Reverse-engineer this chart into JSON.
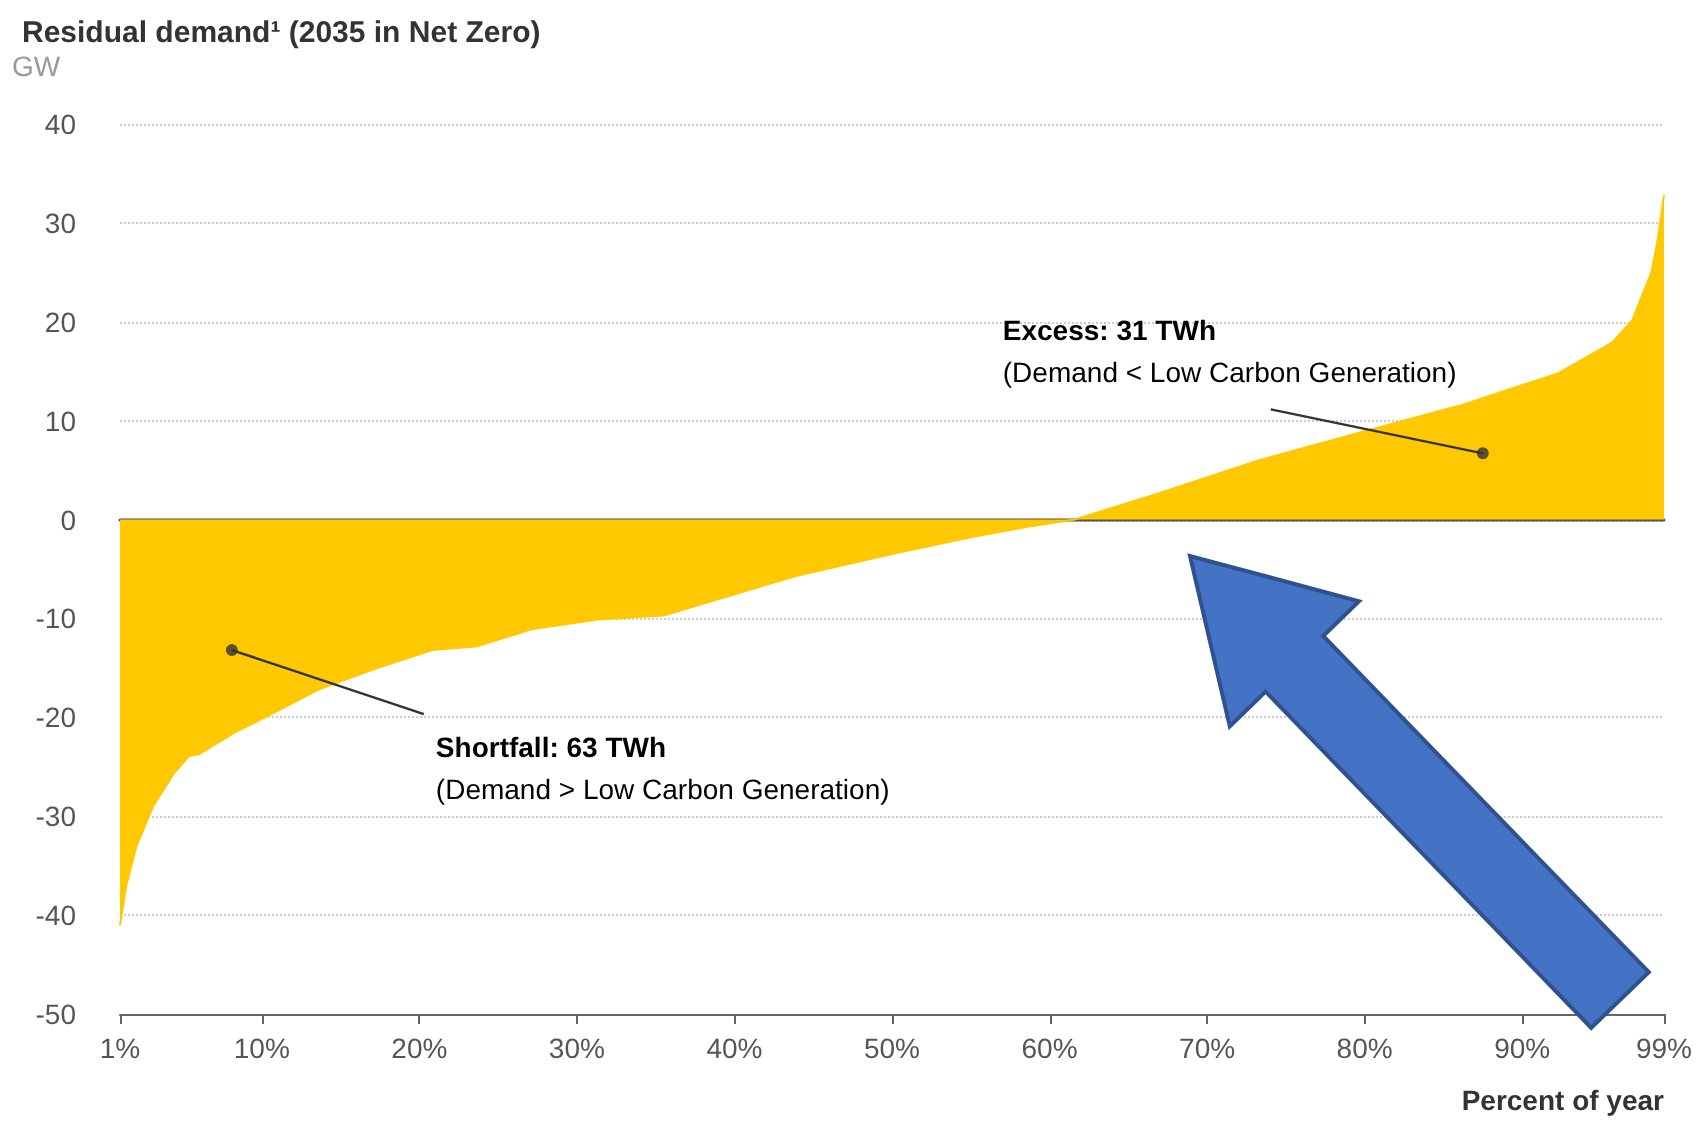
{
  "chart_data": {
    "type": "area",
    "title": "Residual demand¹ (2035 in Net Zero)",
    "ylabel": "GW",
    "xlabel": "Percent of year",
    "x": [
      1,
      1.4,
      2.05,
      3.1,
      4.4,
      5.4,
      6.05,
      8.2,
      10.7,
      13.6,
      17,
      20.8,
      23.7,
      27.1,
      31.3,
      35.5,
      39.7,
      43.9,
      50.2,
      55,
      58.7,
      61.6,
      67,
      73.3,
      79.7,
      86,
      92.3,
      95.7,
      97,
      98.2,
      98.6,
      99
    ],
    "series": [
      {
        "color": "#ffc800",
        "values": [
          -41,
          -37,
          -33,
          -29,
          -25.7,
          -23.9,
          -23.7,
          -21.6,
          -19.6,
          -17.2,
          -15.2,
          -13.2,
          -12.8,
          -11.1,
          -10.1,
          -9.7,
          -7.7,
          -5.7,
          -3.4,
          -1.8,
          -0.7,
          0,
          2.7,
          6,
          8.8,
          11.5,
          14.8,
          17.9,
          20.2,
          25,
          28.3,
          32.8
        ]
      }
    ],
    "xlim": [
      1,
      99
    ],
    "xticks": [
      {
        "value": 1,
        "label": "1%"
      },
      {
        "value": 10,
        "label": "10%"
      },
      {
        "value": 20,
        "label": "20%"
      },
      {
        "value": 30,
        "label": "30%"
      },
      {
        "value": 40,
        "label": "40%"
      },
      {
        "value": 50,
        "label": "50%"
      },
      {
        "value": 60,
        "label": "60%"
      },
      {
        "value": 70,
        "label": "70%"
      },
      {
        "value": 80,
        "label": "80%"
      },
      {
        "value": 90,
        "label": "90%"
      },
      {
        "value": 99,
        "label": "99%"
      }
    ],
    "ylim": [
      -50,
      40
    ],
    "yticks": [
      -50,
      -40,
      -30,
      -20,
      -10,
      0,
      10,
      20,
      30,
      40
    ],
    "grid": "y",
    "marker": "none",
    "annotations": [
      {
        "text": "Shortfall: 63 TWh\n(Demand > Low Carbon Generation)",
        "x": 8.1,
        "y": -13.2
      },
      {
        "text": "Excess: 31 TWh\n(Demand < Low Carbon Generation)",
        "x": 87.5,
        "y": 6.7
      }
    ]
  }
}
